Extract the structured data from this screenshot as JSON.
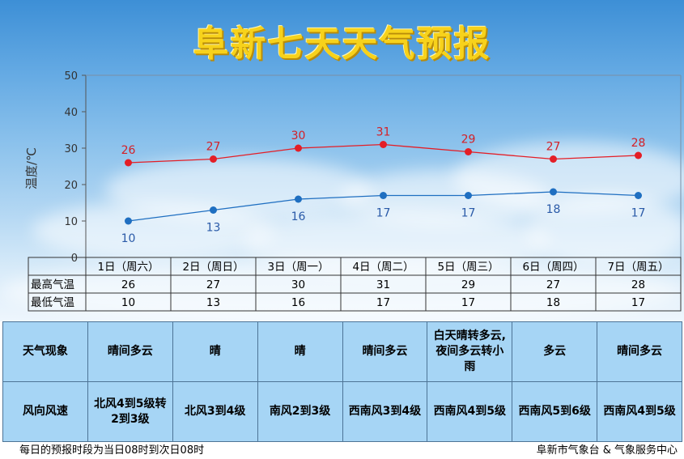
{
  "title": "阜新七天天气预报",
  "chart_data": {
    "type": "line",
    "ylabel": "温度/℃",
    "xlabel": "",
    "ylim": [
      0,
      50
    ],
    "yticks": [
      0,
      10,
      20,
      30,
      40,
      50
    ],
    "grid": false,
    "categories": [
      "1日（周六）",
      "2日（周日）",
      "3日（周一）",
      "4日（周二）",
      "5日（周三）",
      "6日（周四）",
      "7日（周五）"
    ],
    "series": [
      {
        "name": "最高气温",
        "values": [
          26,
          27,
          30,
          31,
          29,
          27,
          28
        ],
        "color": "#e41e26"
      },
      {
        "name": "最低气温",
        "values": [
          10,
          13,
          16,
          17,
          17,
          18,
          17
        ],
        "color": "#1f6fc1"
      }
    ]
  },
  "weather": {
    "label": "天气现象",
    "values": [
      "晴间多云",
      "晴",
      "晴",
      "晴间多云",
      "白天晴转多云,夜间多云转小雨",
      "多云",
      "晴间多云"
    ]
  },
  "wind": {
    "label": "风向风速",
    "values": [
      "北风4到5级转2到3级",
      "北风3到4级",
      "南风2到3级",
      "西南风3到4级",
      "西南风4到5级",
      "西南风5到6级",
      "西南风4到5级"
    ]
  },
  "footer": {
    "left": "每日的预报时段为当日08时到次日08时",
    "right": "阜新市气象台 & 气象服务中心"
  }
}
